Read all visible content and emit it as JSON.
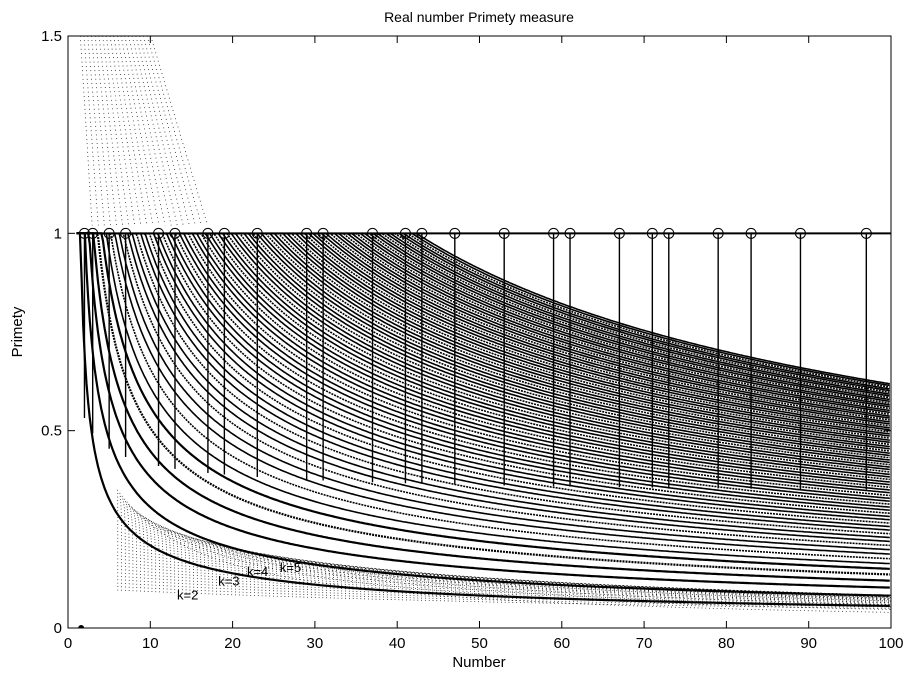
{
  "chart_data": {
    "type": "scatter",
    "title": "Real number Primety measure",
    "xlabel": "Number",
    "ylabel": "Primety",
    "xlim": [
      0,
      100
    ],
    "ylim": [
      0,
      1.5
    ],
    "xticks": [
      "0",
      "10",
      "20",
      "30",
      "40",
      "50",
      "60",
      "70",
      "80",
      "90",
      "100"
    ],
    "yticks": [
      "0",
      "0.5",
      "1",
      "1.5"
    ],
    "grid": false,
    "primes": [
      2,
      3,
      5,
      7,
      11,
      13,
      17,
      19,
      23,
      29,
      31,
      37,
      41,
      43,
      47,
      53,
      59,
      61,
      67,
      71,
      73,
      79,
      83,
      89,
      97
    ],
    "series": [
      {
        "values": [
          [
            1.6,
            0.0
          ],
          [
            2.0,
            1.0
          ]
        ],
        "marker": "o"
      }
    ],
    "annotations": [
      {
        "text": "k=2",
        "x": 13,
        "y": 0.085
      },
      {
        "text": "k=3",
        "x": 18,
        "y": 0.12
      },
      {
        "text": "k=4",
        "x": 21.5,
        "y": 0.145
      },
      {
        "text": "k=5",
        "x": 25.5,
        "y": 0.155
      }
    ]
  }
}
